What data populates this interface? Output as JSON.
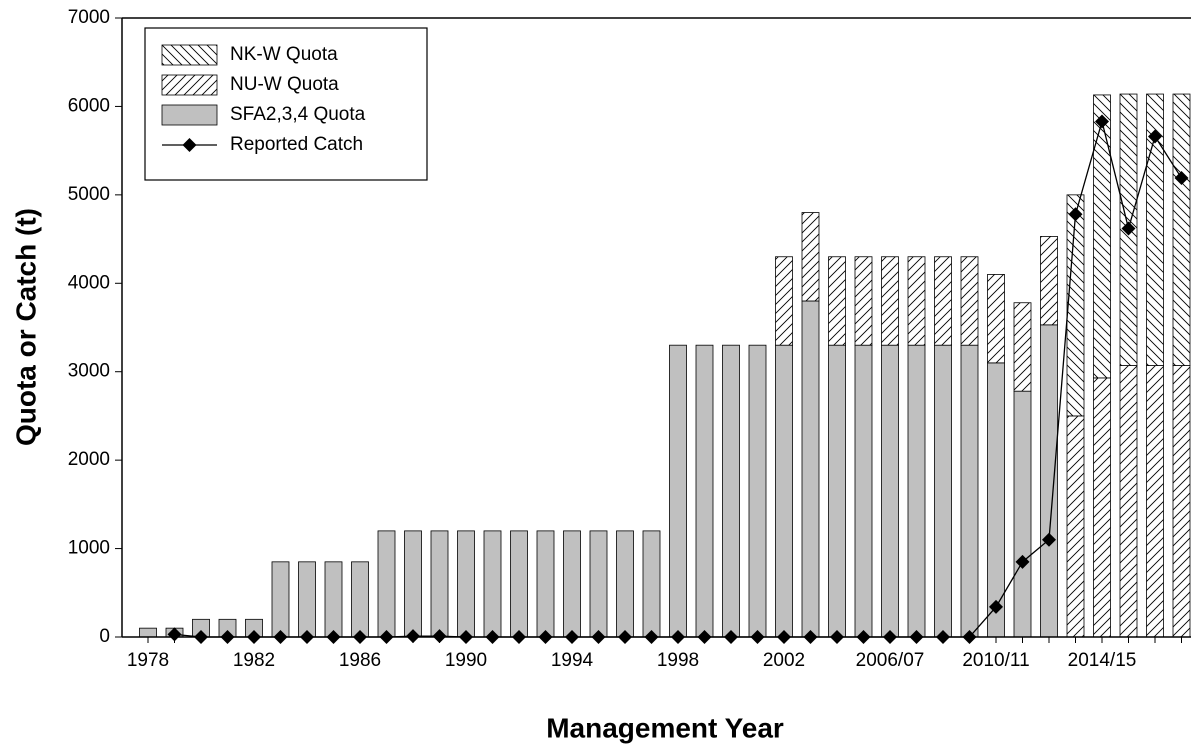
{
  "chart_data": {
    "type": "bar",
    "x_label": "Management Year",
    "y_label": "Quota or Catch (t)",
    "categories": [
      "1978",
      null,
      null,
      null,
      "1982",
      null,
      null,
      null,
      "1986",
      null,
      null,
      null,
      "1990",
      null,
      null,
      null,
      "1994",
      null,
      null,
      null,
      "1998",
      null,
      null,
      null,
      "2002",
      null,
      null,
      null,
      "2006/07",
      null,
      null,
      null,
      "2010/11",
      null,
      null,
      null,
      "2014/15",
      null,
      null,
      null
    ],
    "series": [
      {
        "name": "NK-W Quota",
        "type": "bar",
        "hatch": "backslash",
        "color": "#000000",
        "values": [
          0,
          0,
          0,
          0,
          0,
          0,
          0,
          0,
          0,
          0,
          0,
          0,
          0,
          0,
          0,
          0,
          0,
          0,
          0,
          0,
          0,
          0,
          0,
          0,
          0,
          0,
          0,
          0,
          0,
          0,
          0,
          0,
          0,
          0,
          0,
          2500,
          3200,
          3070,
          3070,
          3070
        ]
      },
      {
        "name": "NU-W Quota",
        "type": "bar",
        "hatch": "slash",
        "color": "#000000",
        "values": [
          0,
          0,
          0,
          0,
          0,
          0,
          0,
          0,
          0,
          0,
          0,
          0,
          0,
          0,
          0,
          0,
          0,
          0,
          0,
          0,
          0,
          0,
          0,
          0,
          1000,
          1000,
          1000,
          1000,
          1000,
          1000,
          1000,
          1000,
          1000,
          1000,
          1000,
          2500,
          2930,
          3070,
          3070,
          3070
        ]
      },
      {
        "name": "SFA2,3,4 Quota",
        "type": "bar",
        "color": "#c0c0c0",
        "values": [
          100,
          100,
          200,
          200,
          200,
          850,
          850,
          850,
          850,
          1200,
          1200,
          1200,
          1200,
          1200,
          1200,
          1200,
          1200,
          1200,
          1200,
          1200,
          3300,
          3300,
          3300,
          3300,
          3300,
          3800,
          3300,
          3300,
          3300,
          3300,
          3300,
          3300,
          3100,
          2780,
          3530,
          0,
          0,
          0,
          0,
          0
        ]
      },
      {
        "name": "Reported Catch",
        "type": "line",
        "color": "#000000",
        "values": [
          null,
          30,
          0,
          0,
          0,
          0,
          0,
          0,
          0,
          0,
          10,
          10,
          0,
          0,
          0,
          0,
          0,
          0,
          0,
          0,
          0,
          0,
          0,
          0,
          0,
          0,
          0,
          0,
          0,
          0,
          0,
          0,
          340,
          850,
          1100,
          4780,
          5830,
          4620,
          5660,
          5190
        ]
      }
    ],
    "ylim": [
      0,
      7000
    ],
    "yticks": [
      0,
      1000,
      2000,
      3000,
      4000,
      5000,
      6000,
      7000
    ]
  }
}
